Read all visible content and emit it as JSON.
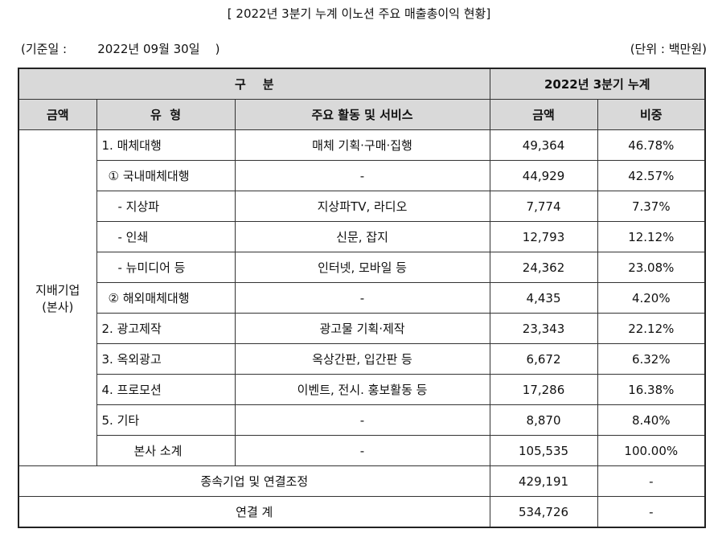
{
  "title": "[ 2022년 3분기 누계 이노션 주요 매출총이익 현황]",
  "basis": {
    "label": "(기준일 :",
    "date": "2022년 09월 30일",
    "close": ")"
  },
  "unit": "(단위 : 백만원)",
  "header": {
    "group": "구    분",
    "period": "2022년 3분기 누계",
    "col_amount_type": "금액",
    "col_type": "유  형",
    "col_service": "주요 활동 및 서비스",
    "col_amount": "금액",
    "col_ratio": "비중"
  },
  "entity": [
    "지배기업",
    "(본사)"
  ],
  "rows": [
    {
      "type": "1. 매체대행",
      "service": "매체 기획·구매·집행",
      "amount": "49,364",
      "ratio": "46.78%",
      "indent": "l"
    },
    {
      "type": "① 국내매체대행",
      "service": "-",
      "amount": "44,929",
      "ratio": "42.57%",
      "indent": "l2"
    },
    {
      "type": "- 지상파",
      "service": "지상파TV, 라디오",
      "amount": "7,774",
      "ratio": "7.37%",
      "indent": "l3"
    },
    {
      "type": "- 인쇄",
      "service": "신문, 잡지",
      "amount": "12,793",
      "ratio": "12.12%",
      "indent": "l3"
    },
    {
      "type": "- 뉴미디어 등",
      "service": "인터넷, 모바일 등",
      "amount": "24,362",
      "ratio": "23.08%",
      "indent": "l3"
    },
    {
      "type": "② 해외매체대행",
      "service": "-",
      "amount": "4,435",
      "ratio": "4.20%",
      "indent": "l2"
    },
    {
      "type": "2. 광고제작",
      "service": "광고물 기획·제작",
      "amount": "23,343",
      "ratio": "22.12%",
      "indent": "l"
    },
    {
      "type": "3. 옥외광고",
      "service": "옥상간판, 입간판 등",
      "amount": "6,672",
      "ratio": "6.32%",
      "indent": "l"
    },
    {
      "type": "4. 프로모션",
      "service": "이벤트, 전시. 홍보활동 등",
      "amount": "17,286",
      "ratio": "16.38%",
      "indent": "l"
    },
    {
      "type": "5. 기타",
      "service": "-",
      "amount": "8,870",
      "ratio": "8.40%",
      "indent": "l"
    },
    {
      "type": "본사 소계",
      "service": "-",
      "amount": "105,535",
      "ratio": "100.00%",
      "indent": "l4"
    }
  ],
  "subsidiary": {
    "label": "종속기업 및 연결조정",
    "amount": "429,191",
    "ratio": "-"
  },
  "consolidated": {
    "label": "연결 계",
    "amount": "534,726",
    "ratio": "-"
  }
}
